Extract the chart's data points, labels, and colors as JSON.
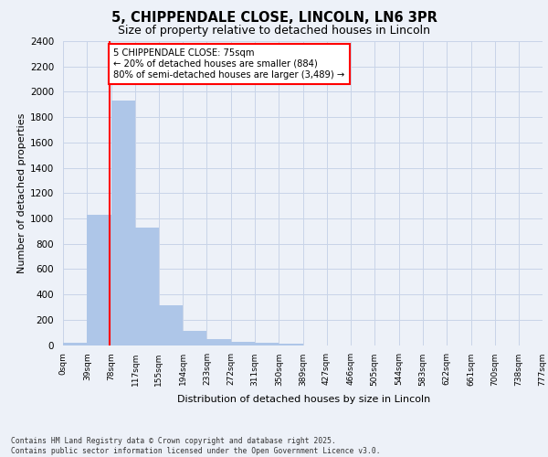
{
  "title_line1": "5, CHIPPENDALE CLOSE, LINCOLN, LN6 3PR",
  "title_line2": "Size of property relative to detached houses in Lincoln",
  "xlabel": "Distribution of detached houses by size in Lincoln",
  "ylabel": "Number of detached properties",
  "bar_color": "#aec6e8",
  "grid_color": "#c8d4e8",
  "vline_color": "red",
  "vline_x": 75,
  "annotation_text": "5 CHIPPENDALE CLOSE: 75sqm\n← 20% of detached houses are smaller (884)\n80% of semi-detached houses are larger (3,489) →",
  "annotation_box_color": "white",
  "annotation_box_edge": "red",
  "bin_edges": [
    0,
    39,
    78,
    117,
    155,
    194,
    233,
    272,
    311,
    350,
    389,
    427,
    466,
    505,
    544,
    583,
    622,
    661,
    700,
    738,
    777
  ],
  "bar_heights": [
    15,
    1025,
    1930,
    930,
    315,
    110,
    50,
    25,
    15,
    8,
    0,
    0,
    0,
    0,
    0,
    0,
    0,
    0,
    0,
    0
  ],
  "ylim": [
    0,
    2400
  ],
  "yticks": [
    0,
    200,
    400,
    600,
    800,
    1000,
    1200,
    1400,
    1600,
    1800,
    2000,
    2200,
    2400
  ],
  "xtick_labels": [
    "0sqm",
    "39sqm",
    "78sqm",
    "117sqm",
    "155sqm",
    "194sqm",
    "233sqm",
    "272sqm",
    "311sqm",
    "350sqm",
    "389sqm",
    "427sqm",
    "466sqm",
    "505sqm",
    "544sqm",
    "583sqm",
    "622sqm",
    "661sqm",
    "700sqm",
    "738sqm",
    "777sqm"
  ],
  "footer_text": "Contains HM Land Registry data © Crown copyright and database right 2025.\nContains public sector information licensed under the Open Government Licence v3.0.",
  "bg_color": "#edf1f8",
  "plot_bg_color": "#edf1f8"
}
